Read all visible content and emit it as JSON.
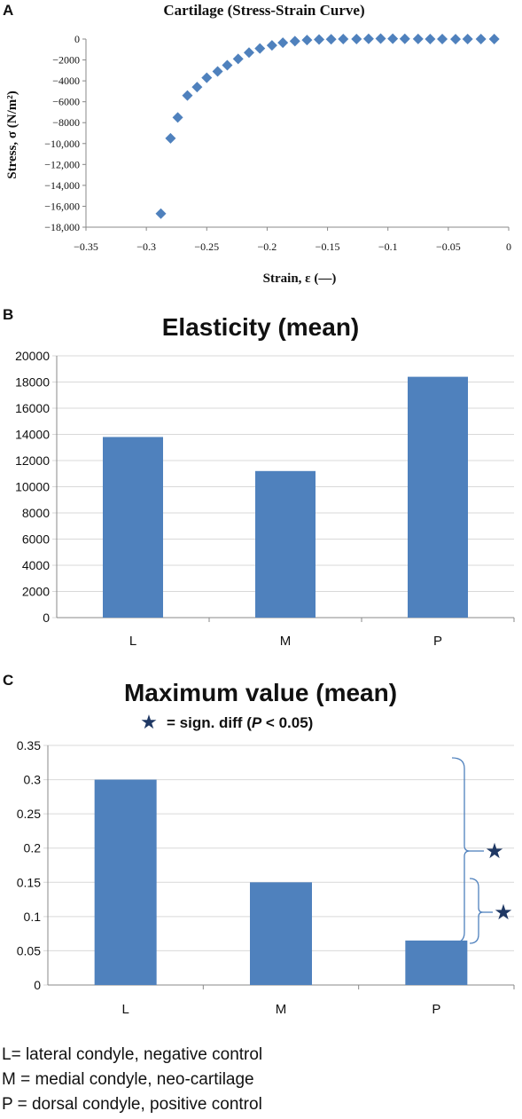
{
  "panels": {
    "a": {
      "label": "A"
    },
    "b": {
      "label": "B"
    },
    "c": {
      "label": "C"
    }
  },
  "colors": {
    "bar": "#4f81bd",
    "marker": "#4f81bd",
    "grid": "#d9d9d9",
    "axis": "#888888",
    "star": "#1f3864",
    "bracket": "#4f81bd",
    "text": "#111111"
  },
  "chart_data": [
    {
      "type": "scatter",
      "title": "Cartilage (Stress-Strain Curve)",
      "xlabel": "Strain, ε (—)",
      "ylabel": "Stress, σ (N/m²)",
      "xlim": [
        -0.35,
        0
      ],
      "ylim": [
        -18000,
        0
      ],
      "x_ticks": [
        -0.35,
        -0.3,
        -0.25,
        -0.2,
        -0.15,
        -0.1,
        -0.05,
        0
      ],
      "x_tick_labels": [
        "−0.35",
        "−0.3",
        "−0.25",
        "−0.2",
        "−0.15",
        "−0.1",
        "−0.05",
        "0"
      ],
      "y_ticks": [
        0,
        -2000,
        -4000,
        -6000,
        -8000,
        -10000,
        -12000,
        -14000,
        -16000,
        -18000
      ],
      "y_tick_labels": [
        "0",
        "−2000",
        "−4000",
        "−6000",
        "−8000",
        "−10,000",
        "−12,000",
        "−14,000",
        "−16,000",
        "−18,000"
      ],
      "grid": false,
      "marker": "diamond",
      "series": [
        {
          "points": [
            [
              -0.288,
              -16700
            ],
            [
              -0.28,
              -9500
            ],
            [
              -0.274,
              -7500
            ],
            [
              -0.266,
              -5400
            ],
            [
              -0.258,
              -4600
            ],
            [
              -0.25,
              -3700
            ],
            [
              -0.241,
              -3100
            ],
            [
              -0.233,
              -2500
            ],
            [
              -0.224,
              -1900
            ],
            [
              -0.215,
              -1300
            ],
            [
              -0.206,
              -900
            ],
            [
              -0.196,
              -600
            ],
            [
              -0.187,
              -350
            ],
            [
              -0.177,
              -200
            ],
            [
              -0.167,
              -100
            ],
            [
              -0.157,
              -40
            ],
            [
              -0.147,
              -20
            ],
            [
              -0.137,
              0
            ],
            [
              -0.126,
              0
            ],
            [
              -0.116,
              20
            ],
            [
              -0.106,
              40
            ],
            [
              -0.096,
              30
            ],
            [
              -0.086,
              20
            ],
            [
              -0.075,
              10
            ],
            [
              -0.065,
              0
            ],
            [
              -0.055,
              0
            ],
            [
              -0.044,
              -10
            ],
            [
              -0.034,
              0
            ],
            [
              -0.023,
              0
            ],
            [
              -0.012,
              0
            ]
          ]
        }
      ]
    },
    {
      "type": "bar",
      "title": "Elasticity (mean)",
      "xlabel": "",
      "ylabel": "",
      "categories": [
        "L",
        "M",
        "P"
      ],
      "values": [
        13800,
        11200,
        18400
      ],
      "ylim": [
        0,
        20000
      ],
      "y_ticks": [
        0,
        2000,
        4000,
        6000,
        8000,
        10000,
        12000,
        14000,
        16000,
        18000,
        20000
      ],
      "grid": true
    },
    {
      "type": "bar",
      "title": "Maximum value (mean)",
      "xlabel": "",
      "ylabel": "",
      "categories": [
        "L",
        "M",
        "P"
      ],
      "values": [
        0.3,
        0.15,
        0.065
      ],
      "ylim": [
        0,
        0.35
      ],
      "y_ticks": [
        0,
        0.05,
        0.1,
        0.15,
        0.2,
        0.25,
        0.3,
        0.35
      ],
      "grid": true,
      "significance_legend": {
        "symbol": "★",
        "parts": [
          "= sign. diff (",
          "P",
          " < 0.05)"
        ]
      },
      "significance_marks": [
        {
          "between": [
            "P",
            "L"
          ],
          "symbol": "★"
        },
        {
          "between": [
            "P",
            "M"
          ],
          "symbol": "★"
        }
      ]
    }
  ],
  "legend_lines": [
    "L= lateral condyle, negative control",
    "M = medial condyle, neo-cartilage",
    "P = dorsal condyle, positive control"
  ]
}
